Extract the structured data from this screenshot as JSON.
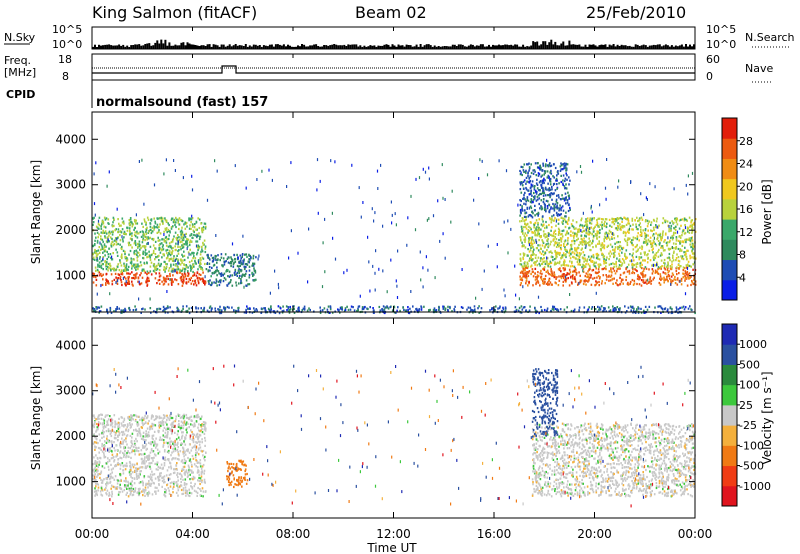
{
  "header": {
    "station": "King Salmon (fitACF)",
    "beam": "Beam 02",
    "date": "25/Feb/2010"
  },
  "summary_panels": {
    "nsky": {
      "label": "N.Sky",
      "ticks": [
        "10^5",
        "10^0"
      ]
    },
    "nsearch": {
      "label": "N.Search",
      "ticks": [
        "10^5",
        "10^0"
      ]
    },
    "freq": {
      "label_top": "Freq.",
      "label_bottom": "[MHz]",
      "ticks": [
        "18",
        "8"
      ]
    },
    "nave": {
      "label": "Nave",
      "ticks": [
        "60",
        "0"
      ]
    },
    "cpid": {
      "label": "CPID",
      "text": "normalsound (fast) 157"
    }
  },
  "colors": {
    "power_scale": [
      "#0a1ee6",
      "#1e4cb4",
      "#2f8a5e",
      "#3aa86a",
      "#b8d23c",
      "#f0c81e",
      "#f08c14",
      "#ec5a10",
      "#e21e0a"
    ],
    "velocity_scale": [
      "#e0141e",
      "#f03c14",
      "#f07a14",
      "#f4b03c",
      "#c8c8c8",
      "#3cc83c",
      "#2a8a3c",
      "#2a50a0",
      "#1e2ab4"
    ]
  },
  "chart_data": [
    {
      "type": "heatmap",
      "title": "",
      "xlabel": "Time UT",
      "ylabel": "Slant Range [km]",
      "x_ticks": [
        "00:00",
        "04:00",
        "08:00",
        "12:00",
        "16:00",
        "20:00",
        "00:00"
      ],
      "y_ticks": [
        "1000",
        "2000",
        "3000",
        "4000"
      ],
      "ylim": [
        200,
        4600
      ],
      "colorbar": {
        "label": "Power [dB]",
        "ticks": [
          "4",
          "8",
          "12",
          "16",
          "20",
          "24",
          "28"
        ],
        "range": [
          0,
          32
        ]
      },
      "features": [
        {
          "start": "00:00",
          "end": "04:30",
          "range": [
            800,
            1100
          ],
          "level": 28
        },
        {
          "start": "00:00",
          "end": "04:30",
          "range": [
            1100,
            2300
          ],
          "level": 14
        },
        {
          "start": "04:30",
          "end": "06:30",
          "range": [
            800,
            1500
          ],
          "level": 8
        },
        {
          "start": "17:00",
          "end": "24:00",
          "range": [
            800,
            1200
          ],
          "level": 26
        },
        {
          "start": "17:00",
          "end": "24:00",
          "range": [
            1200,
            2300
          ],
          "level": 16
        },
        {
          "start": "17:00",
          "end": "19:00",
          "range": [
            2300,
            3500
          ],
          "level": 6
        },
        {
          "start": "00:00",
          "end": "24:00",
          "range": [
            200,
            350
          ],
          "level": 6
        }
      ]
    },
    {
      "type": "heatmap",
      "title": "",
      "xlabel": "Time UT",
      "ylabel": "Slant Range [km]",
      "x_ticks": [
        "00:00",
        "04:00",
        "08:00",
        "12:00",
        "16:00",
        "20:00",
        "00:00"
      ],
      "y_ticks": [
        "1000",
        "2000",
        "3000",
        "4000"
      ],
      "ylim": [
        200,
        4600
      ],
      "colorbar": {
        "label": "Velocity [m s⁻¹]",
        "ticks": [
          "1000",
          "500",
          "100",
          "25",
          "-25",
          "-100",
          "-500",
          "-1000"
        ],
        "range": [
          -1000,
          1000
        ]
      },
      "features": [
        {
          "start": "00:00",
          "end": "04:30",
          "range": [
            700,
            2500
          ],
          "level": 0
        },
        {
          "start": "05:20",
          "end": "06:10",
          "range": [
            900,
            1500
          ],
          "level": -200
        },
        {
          "start": "17:30",
          "end": "24:00",
          "range": [
            700,
            2300
          ],
          "level": 0
        },
        {
          "start": "17:30",
          "end": "18:30",
          "range": [
            2000,
            3500
          ],
          "level": 150
        }
      ]
    }
  ]
}
